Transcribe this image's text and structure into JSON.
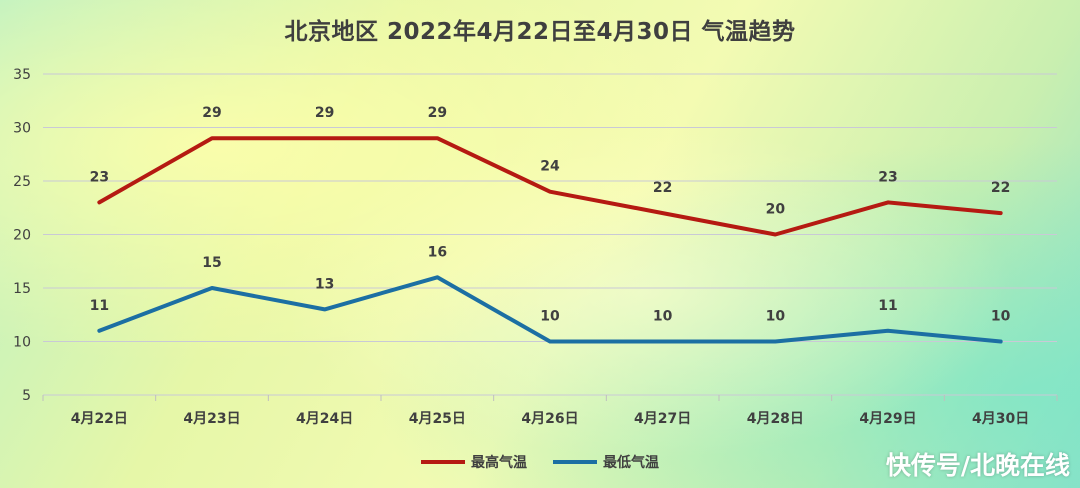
{
  "title": "北京地区  2022年4月22日至4月30日  气温趋势",
  "watermark": "快传号/北晚在线",
  "chart_data": {
    "type": "line",
    "title": "北京地区  2022年4月22日至4月30日  气温趋势",
    "categories": [
      "4月22日",
      "4月23日",
      "4月24日",
      "4月25日",
      "4月26日",
      "4月27日",
      "4月28日",
      "4月29日",
      "4月30日"
    ],
    "series": [
      {
        "name": "最高气温",
        "color": "#b51a12",
        "values": [
          23,
          29,
          29,
          29,
          24,
          22,
          20,
          23,
          22
        ]
      },
      {
        "name": "最低气温",
        "color": "#1c6fa3",
        "values": [
          11,
          15,
          13,
          16,
          10,
          10,
          10,
          11,
          10
        ]
      }
    ],
    "ylim": [
      5,
      35
    ],
    "yticks": [
      5,
      10,
      15,
      20,
      25,
      30,
      35
    ],
    "grid": true,
    "legend": "bottom",
    "data_labels": true
  }
}
